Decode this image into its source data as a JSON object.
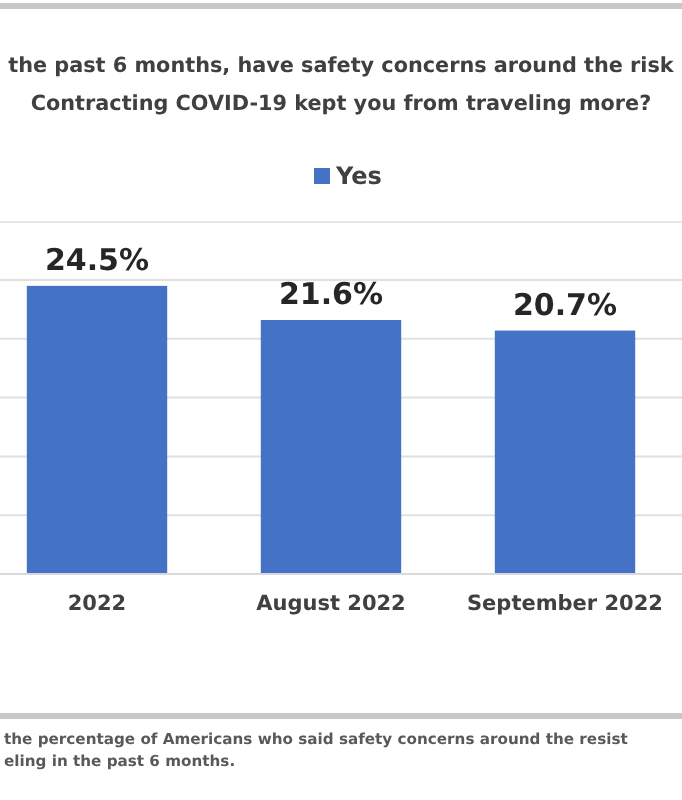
{
  "chart_data": {
    "type": "bar",
    "title": "the past 6 months, have safety concerns around the risk\nContracting COVID-19 kept you from traveling more?",
    "categories": [
      "2022",
      "August 2022",
      "September 2022"
    ],
    "series": [
      {
        "name": "Yes",
        "color": "#4472c4",
        "values": [
          24.5,
          21.6,
          20.7
        ],
        "value_labels": [
          "24.5%",
          "21.6%",
          "20.7%"
        ]
      }
    ],
    "ylim": [
      0,
      25
    ],
    "yticks": [
      {
        "value": 0,
        "label": null
      },
      {
        "value": 5,
        "label": null
      },
      {
        "value": 10,
        "label": null
      },
      {
        "value": 15,
        "label": null
      },
      {
        "value": 20,
        "label": null
      },
      {
        "value": 25,
        "label": null
      }
    ],
    "grid": "y",
    "tick_labels": "x",
    "legend": "top",
    "annotations": [
      "the percentage of Americans who said safety concerns around the resist\neling in the past 6 months."
    ]
  }
}
